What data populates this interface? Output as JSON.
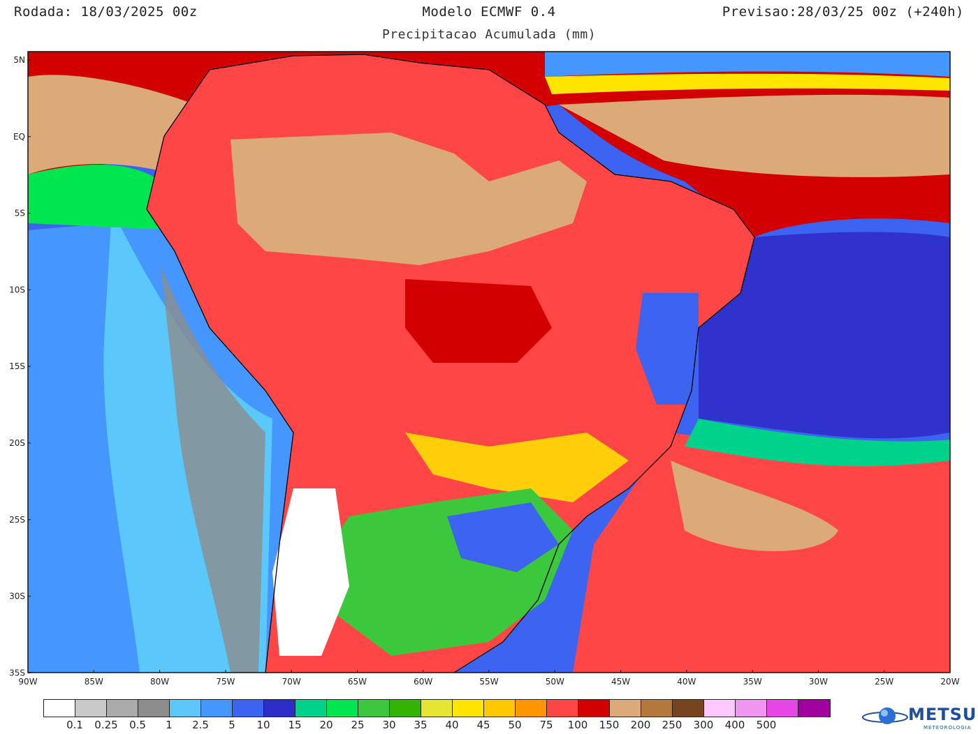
{
  "header": {
    "run": "Rodada: 18/03/2025 00z",
    "model": "Modelo ECMWF 0.4",
    "forecast": "Previsao:28/03/25 00z (+240h)",
    "subtitle": "Precipitacao Acumulada (mm)"
  },
  "map": {
    "lat_labels": [
      "5N",
      "EQ",
      "5S",
      "10S",
      "15S",
      "20S",
      "25S",
      "30S",
      "35S"
    ],
    "lon_labels": [
      "90W",
      "85W",
      "80W",
      "75W",
      "70W",
      "65W",
      "60W",
      "55W",
      "50W",
      "45W",
      "40W",
      "35W",
      "30W",
      "25W",
      "20W"
    ],
    "ocean_color": "#3c7cf0",
    "land_color": "#f03c3c"
  },
  "legend": {
    "colors": [
      "#ffffff",
      "#c8c8c8",
      "#aaaaaa",
      "#8c8c8c",
      "#5ac8fa",
      "#4696ff",
      "#3c64f0",
      "#2d2dc8",
      "#00d28c",
      "#00e650",
      "#3cc83c",
      "#32b400",
      "#e6e632",
      "#ffe600",
      "#ffc800",
      "#ff9600",
      "#ff4646",
      "#d20000",
      "#dcaa78",
      "#b4783c",
      "#78441e",
      "#ffc8ff",
      "#f096f0",
      "#e646e6",
      "#a000a0"
    ],
    "labels": [
      "0.1",
      "0.25",
      "0.5",
      "1",
      "2.5",
      "5",
      "10",
      "15",
      "20",
      "25",
      "30",
      "35",
      "40",
      "45",
      "50",
      "75",
      "100",
      "150",
      "200",
      "250",
      "300",
      "400",
      "500"
    ]
  },
  "logo": {
    "name": "METSUL",
    "sub": "METEOROLOGIA"
  }
}
